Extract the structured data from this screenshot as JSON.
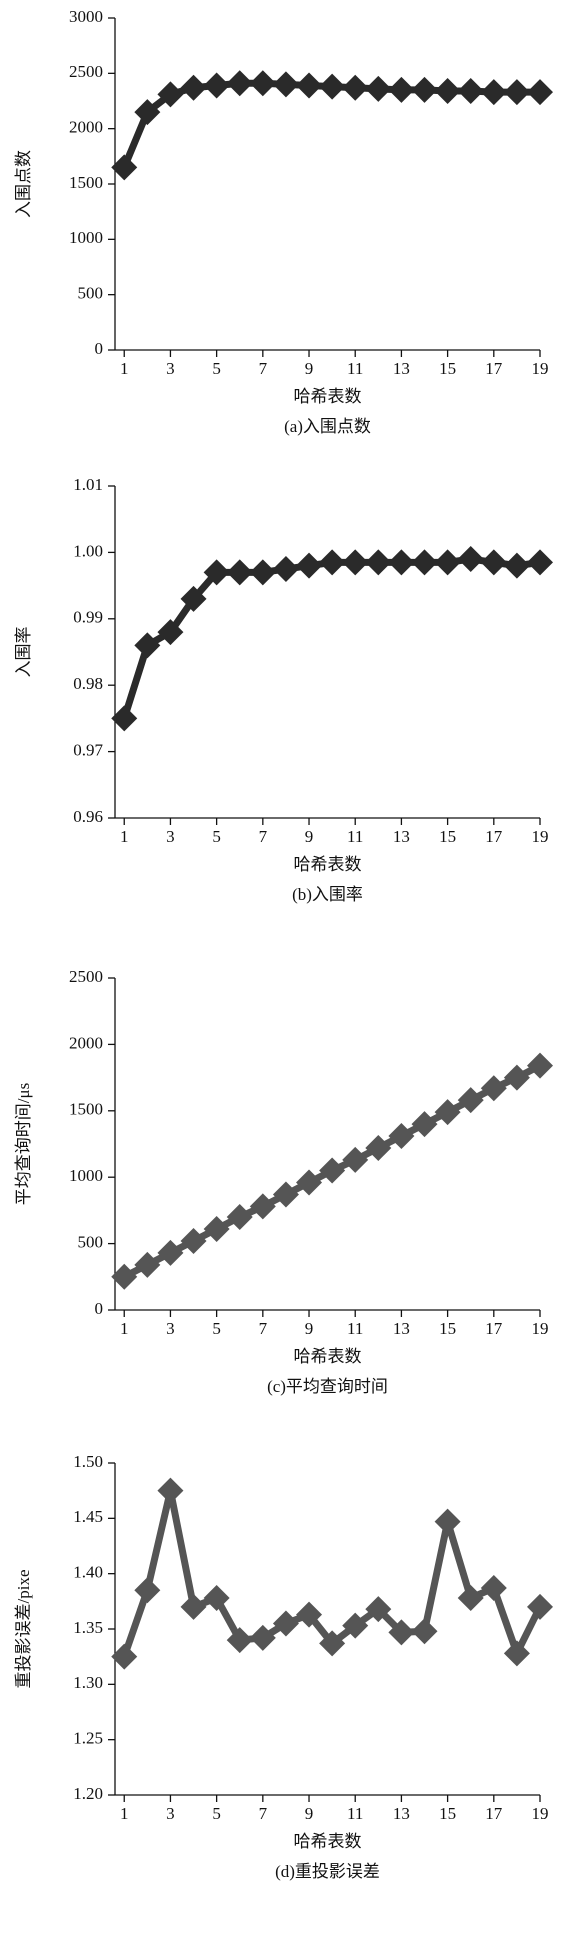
{
  "chart_data": [
    {
      "type": "line",
      "color": "#2a2a2a",
      "xlabel": "哈希表数",
      "ylabel": "入围点数",
      "caption": "(a)入围点数",
      "x": [
        1,
        2,
        3,
        4,
        5,
        6,
        7,
        8,
        9,
        10,
        11,
        12,
        13,
        14,
        15,
        16,
        17,
        18,
        19
      ],
      "values": [
        1650,
        2150,
        2310,
        2370,
        2390,
        2410,
        2410,
        2400,
        2390,
        2380,
        2370,
        2360,
        2350,
        2350,
        2340,
        2340,
        2330,
        2330,
        2330
      ],
      "xlim": [
        0.6,
        19
      ],
      "xticks": [
        1,
        3,
        5,
        7,
        9,
        11,
        13,
        15,
        17,
        19
      ],
      "ylim": [
        0,
        3000
      ],
      "yticks": [
        0,
        500,
        1000,
        1500,
        2000,
        2500,
        3000
      ]
    },
    {
      "type": "line",
      "color": "#2a2a2a",
      "xlabel": "哈希表数",
      "ylabel": "入围率",
      "caption": "(b)入围率",
      "x": [
        1,
        2,
        3,
        4,
        5,
        6,
        7,
        8,
        9,
        10,
        11,
        12,
        13,
        14,
        15,
        16,
        17,
        18,
        19
      ],
      "values": [
        0.975,
        0.986,
        0.988,
        0.993,
        0.997,
        0.997,
        0.997,
        0.9975,
        0.998,
        0.9985,
        0.9985,
        0.9985,
        0.9985,
        0.9985,
        0.9985,
        0.999,
        0.9985,
        0.998,
        0.9985
      ],
      "xlim": [
        0.6,
        19
      ],
      "xticks": [
        1,
        3,
        5,
        7,
        9,
        11,
        13,
        15,
        17,
        19
      ],
      "ylim": [
        0.96,
        1.01
      ],
      "yticks": [
        0.96,
        0.97,
        0.98,
        0.99,
        {
          "value": 1,
          "label": "1.00"
        },
        1.01
      ]
    },
    {
      "type": "line",
      "color": "#555555",
      "xlabel": "哈希表数",
      "ylabel": "平均查询时间/μs",
      "caption": "(c)平均查询时间",
      "x": [
        1,
        2,
        3,
        4,
        5,
        6,
        7,
        8,
        9,
        10,
        11,
        12,
        13,
        14,
        15,
        16,
        17,
        18,
        19
      ],
      "values": [
        250,
        340,
        430,
        520,
        610,
        700,
        780,
        870,
        960,
        1050,
        1130,
        1220,
        1310,
        1400,
        1490,
        1580,
        1670,
        1750,
        1840
      ],
      "xlim": [
        0.6,
        19
      ],
      "xticks": [
        1,
        3,
        5,
        7,
        9,
        11,
        13,
        15,
        17,
        19
      ],
      "ylim": [
        0,
        2500
      ],
      "yticks": [
        0,
        500,
        1000,
        1500,
        2000,
        2500
      ]
    },
    {
      "type": "line",
      "color": "#555555",
      "xlabel": "哈希表数",
      "ylabel": "重投影误差/pixe",
      "caption": "(d)重投影误差",
      "x": [
        1,
        2,
        3,
        4,
        5,
        6,
        7,
        8,
        9,
        10,
        11,
        12,
        13,
        14,
        15,
        16,
        17,
        18,
        19
      ],
      "values": [
        1.325,
        1.385,
        1.475,
        1.37,
        1.378,
        1.34,
        1.342,
        1.355,
        1.363,
        1.337,
        1.353,
        1.368,
        1.347,
        1.348,
        1.447,
        1.378,
        1.387,
        1.328,
        1.37
      ],
      "xlim": [
        0.6,
        19
      ],
      "xticks": [
        1,
        3,
        5,
        7,
        9,
        11,
        13,
        15,
        17,
        19
      ],
      "ylim": [
        1.2,
        1.5
      ],
      "yticks": [
        {
          "value": 1.2,
          "label": "1.20"
        },
        1.25,
        {
          "value": 1.3,
          "label": "1.30"
        },
        1.35,
        {
          "value": 1.4,
          "label": "1.40"
        },
        1.45,
        {
          "value": 1.5,
          "label": "1.50"
        }
      ]
    }
  ]
}
